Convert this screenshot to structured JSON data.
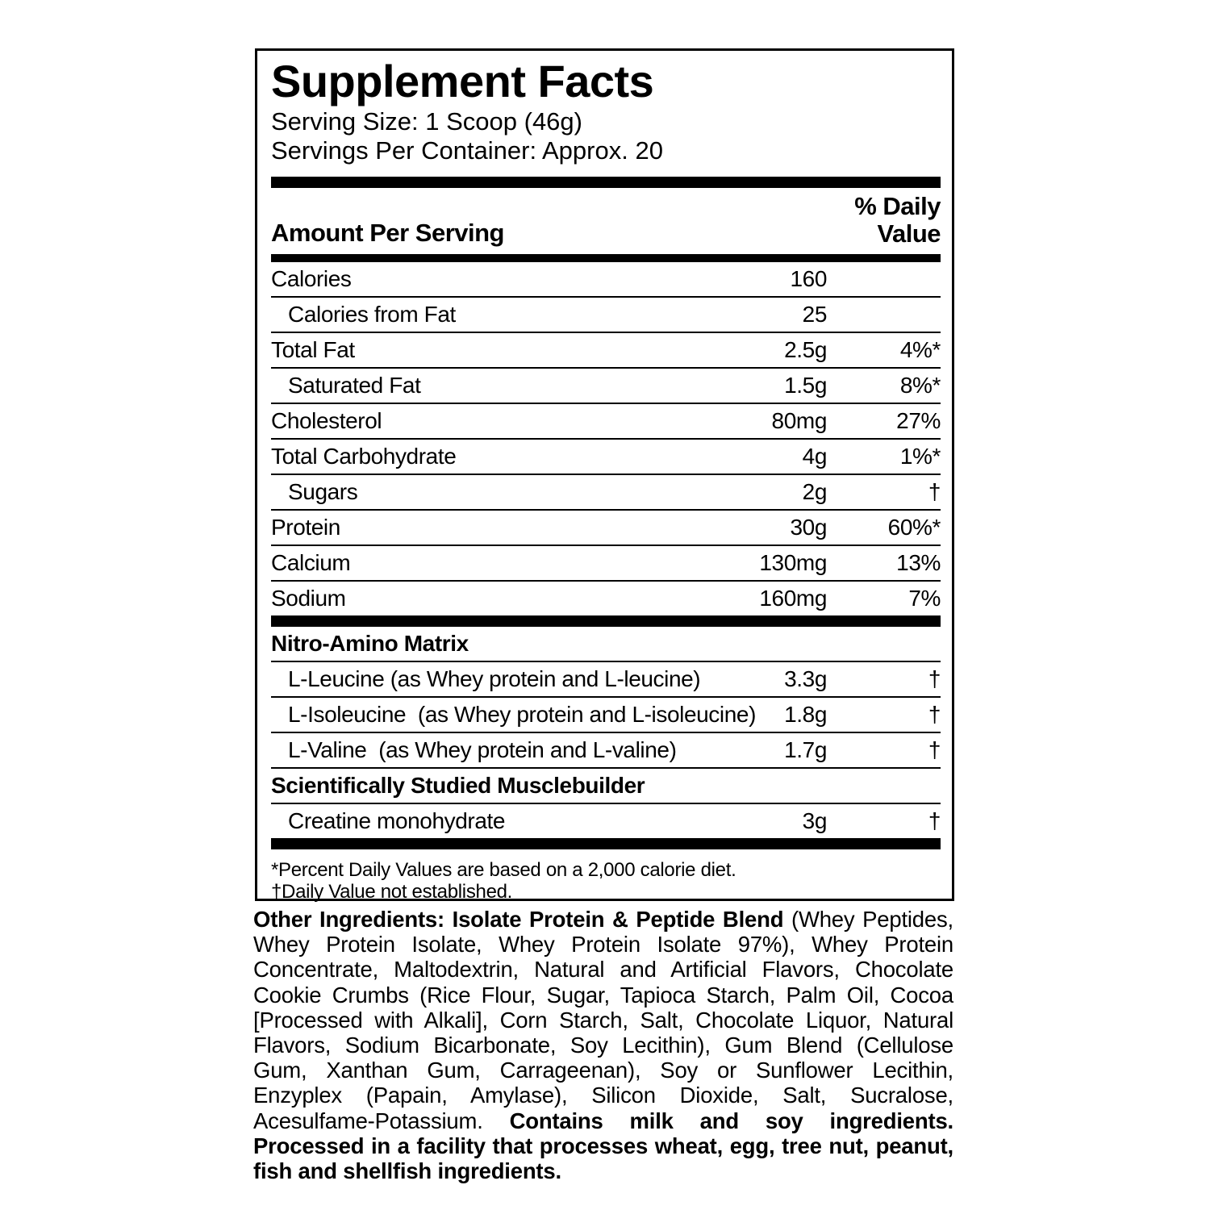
{
  "title": "Supplement Facts",
  "serving_size": "Serving Size: 1 Scoop (46g)",
  "servings_per_container": "Servings Per Container: Approx. 20",
  "header": {
    "amount": "Amount Per Serving",
    "daily_value": "% Daily Value"
  },
  "nutrients": [
    {
      "label": "Calories",
      "amount": "160",
      "sub": [
        {
          "label": "Calories from Fat",
          "amount": "25"
        }
      ]
    },
    {
      "label": "Total Fat",
      "amount": "2.5g",
      "dv": "4%*",
      "sub": [
        {
          "label": "Saturated Fat",
          "amount": "1.5g",
          "dv": "8%*"
        }
      ]
    },
    {
      "label": "Cholesterol",
      "amount": "80mg",
      "dv": "27%"
    },
    {
      "label": "Total Carbohydrate",
      "amount": "4g",
      "dv": "1%*",
      "sub": [
        {
          "label": "Sugars",
          "amount": "2g",
          "dv": "†"
        }
      ]
    },
    {
      "label": "Protein",
      "amount": "30g",
      "dv": "60%*"
    },
    {
      "label": "Calcium",
      "amount": "130mg",
      "dv": "13%"
    },
    {
      "label": "Sodium",
      "amount": "160mg",
      "dv": "7%"
    }
  ],
  "blends": [
    {
      "title": "Nitro-Amino Matrix",
      "items": [
        {
          "label": "L-Leucine (as Whey protein and L-leucine)",
          "amount": "3.3g",
          "dv": "†"
        },
        {
          "label": "L-Isoleucine  (as Whey protein and L-isoleucine)",
          "amount": "1.8g",
          "dv": "†"
        },
        {
          "label": "L-Valine  (as Whey protein and L-valine)",
          "amount": "1.7g",
          "dv": "†"
        }
      ]
    },
    {
      "title": "Scientifically Studied Musclebuilder",
      "items": [
        {
          "label": "Creatine monohydrate",
          "amount": "3g",
          "dv": "†"
        }
      ]
    }
  ],
  "footnotes": [
    "*Percent Daily Values are based on a 2,000 calorie diet.",
    "†Daily Value not established."
  ],
  "ingredients": {
    "lead": "Other Ingredients: Isolate Protein & Peptide Blend",
    "text": "(Whey Peptides, Whey Protein Isolate, Whey Protein Isolate 97%), Whey Protein Concentrate, Maltodextrin, Natural and Artificial Flavors, Chocolate Cookie Crumbs (Rice Flour, Sugar, Tapioca Starch, Palm Oil, Cocoa [Processed with Alkali], Corn Starch, Salt, Chocolate Liquor, Natural Flavors, Sodium Bicarbonate, Soy Lecithin), Gum Blend (Cellulose Gum, Xanthan Gum, Carrageenan), Soy or Sunflower Lecithin, Enzyplex (Papain, Amylase), Silicon Dioxide, Salt, Sucralose, Acesulfame-Potassium.",
    "warning": "Contains milk and soy ingredients. Processed in a facility that processes wheat, egg, tree nut, peanut, fish and shellfish ingredients."
  }
}
